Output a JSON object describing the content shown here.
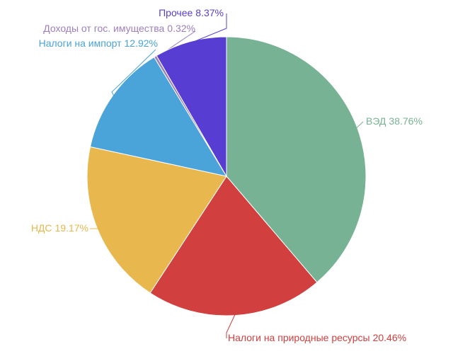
{
  "chart_data": {
    "type": "pie",
    "categories": [
      "ВЭД",
      "Налоги на природные ресурсы",
      "НДС",
      "Налоги на импорт",
      "Доходы от гос. имущества",
      "Прочее"
    ],
    "values": [
      38.76,
      20.46,
      19.17,
      12.92,
      0.32,
      8.37
    ],
    "value_labels": [
      "38.76%",
      "20.46%",
      "19.17%",
      "12.92%",
      "0.32%",
      "8.37%"
    ],
    "colors": [
      "#78b294",
      "#d13f3f",
      "#e8b84f",
      "#4aa3d9",
      "#9b7fbf",
      "#583dd2"
    ]
  }
}
